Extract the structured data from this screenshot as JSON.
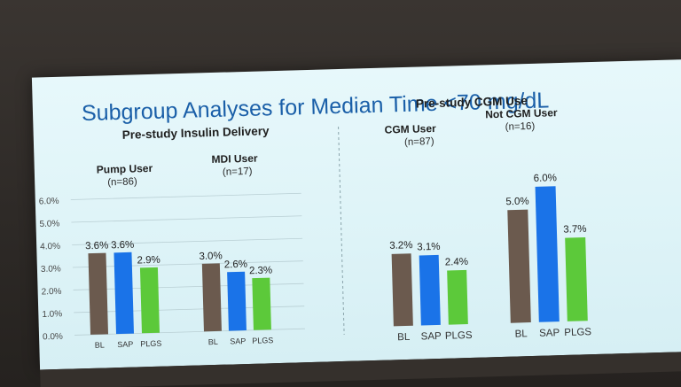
{
  "slide": {
    "title": "Subgroup Analyses for Median Time <70 mg/dL",
    "left_section_title": "Pre-study Insulin Delivery",
    "right_section_title": "Pre-study CGM Use"
  },
  "colors": {
    "BL": "#6b5a4e",
    "SAP": "#1a73e8",
    "PLGS": "#5cc93a",
    "title": "#1a5fa8"
  },
  "chart_data": [
    {
      "type": "bar",
      "title": "Pre-study Insulin Delivery",
      "ylim": [
        0,
        6
      ],
      "yticks": [
        "0.0%",
        "1.0%",
        "2.0%",
        "3.0%",
        "4.0%",
        "5.0%",
        "6.0%"
      ],
      "grid": true,
      "categories": [
        "BL",
        "SAP",
        "PLGS"
      ],
      "groups": [
        {
          "name": "Pump User",
          "n": "(n=86)",
          "values": [
            3.6,
            3.6,
            2.9
          ],
          "labels": [
            "3.6%",
            "3.6%",
            "2.9%"
          ]
        },
        {
          "name": "MDI User",
          "n": "(n=17)",
          "values": [
            3.0,
            2.6,
            2.3
          ],
          "labels": [
            "3.0%",
            "2.6%",
            "2.3%"
          ]
        }
      ]
    },
    {
      "type": "bar",
      "title": "Pre-study CGM Use",
      "ylim": [
        0,
        6
      ],
      "categories": [
        "BL",
        "SAP",
        "PLGS"
      ],
      "groups": [
        {
          "name": "CGM User",
          "n": "(n=87)",
          "values": [
            3.2,
            3.1,
            2.4
          ],
          "labels": [
            "3.2%",
            "3.1%",
            "2.4%"
          ]
        },
        {
          "name": "Not CGM User",
          "n": "(n=16)",
          "values": [
            5.0,
            6.0,
            3.7
          ],
          "labels": [
            "5.0%",
            "6.0%",
            "3.7%"
          ]
        }
      ]
    }
  ]
}
